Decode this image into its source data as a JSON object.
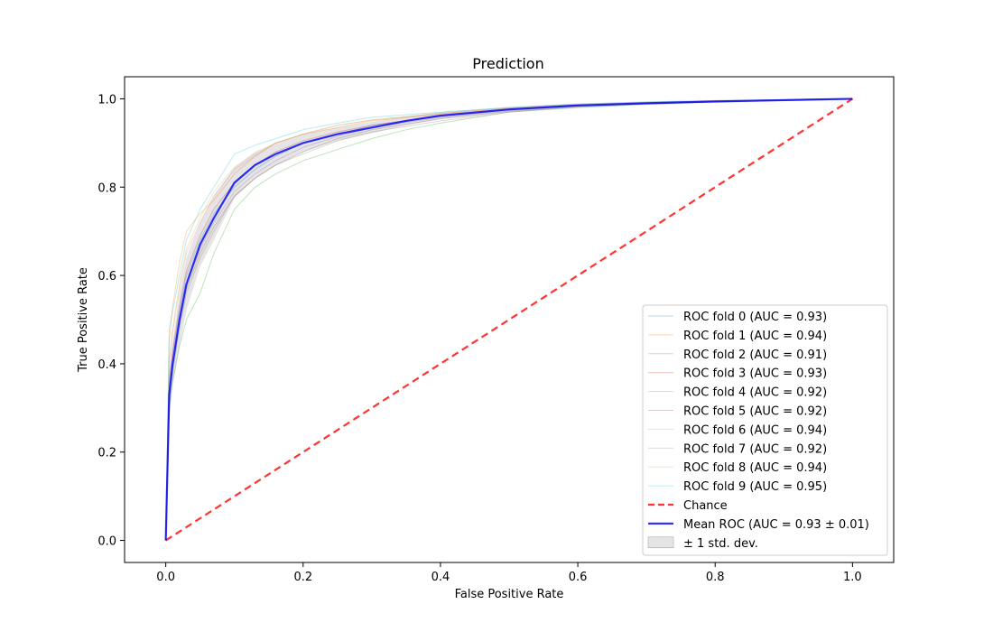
{
  "chart_data": {
    "type": "line",
    "title": "Prediction",
    "xlabel": "False Positive Rate",
    "ylabel": "True Positive Rate",
    "xlim": [
      -0.06,
      1.06
    ],
    "ylim": [
      -0.05,
      1.05
    ],
    "xticks": [
      0.0,
      0.2,
      0.4,
      0.6,
      0.8,
      1.0
    ],
    "yticks": [
      0.0,
      0.2,
      0.4,
      0.6,
      0.8,
      1.0
    ],
    "xtick_labels": [
      "0.0",
      "0.2",
      "0.4",
      "0.6",
      "0.8",
      "1.0"
    ],
    "ytick_labels": [
      "0.0",
      "0.2",
      "0.4",
      "0.6",
      "0.8",
      "1.0"
    ],
    "grid": false,
    "legend_position": "lower-right",
    "series": [
      {
        "name": "ROC fold 0 (AUC = 0.93)",
        "color": "#1f77b4",
        "x": [
          0,
          0.005,
          0.01,
          0.02,
          0.03,
          0.05,
          0.07,
          0.1,
          0.13,
          0.16,
          0.2,
          0.25,
          0.3,
          0.4,
          0.5,
          0.6,
          0.7,
          0.8,
          0.9,
          1.0
        ],
        "y": [
          0,
          0.35,
          0.42,
          0.52,
          0.6,
          0.68,
          0.74,
          0.8,
          0.84,
          0.87,
          0.9,
          0.92,
          0.94,
          0.96,
          0.975,
          0.984,
          0.99,
          0.994,
          0.997,
          1.0
        ]
      },
      {
        "name": "ROC fold 1 (AUC = 0.94)",
        "color": "#ff7f0e",
        "x": [
          0,
          0.005,
          0.01,
          0.02,
          0.03,
          0.05,
          0.07,
          0.1,
          0.13,
          0.16,
          0.2,
          0.25,
          0.3,
          0.4,
          0.5,
          0.6,
          0.7,
          0.8,
          0.9,
          1.0
        ],
        "y": [
          0,
          0.45,
          0.53,
          0.63,
          0.7,
          0.74,
          0.77,
          0.83,
          0.87,
          0.9,
          0.92,
          0.935,
          0.95,
          0.965,
          0.978,
          0.986,
          0.991,
          0.995,
          0.998,
          1.0
        ]
      },
      {
        "name": "ROC fold 2 (AUC = 0.91)",
        "color": "#2ca02c",
        "x": [
          0,
          0.005,
          0.01,
          0.02,
          0.03,
          0.05,
          0.07,
          0.1,
          0.13,
          0.16,
          0.2,
          0.25,
          0.3,
          0.35,
          0.4,
          0.5,
          0.6,
          0.7,
          0.8,
          0.9,
          1.0
        ],
        "y": [
          0,
          0.3,
          0.36,
          0.44,
          0.5,
          0.56,
          0.65,
          0.75,
          0.8,
          0.83,
          0.86,
          0.885,
          0.91,
          0.93,
          0.945,
          0.97,
          0.98,
          0.988,
          0.993,
          0.997,
          1.0
        ]
      },
      {
        "name": "ROC fold 3 (AUC = 0.93)",
        "color": "#d62728",
        "x": [
          0,
          0.005,
          0.01,
          0.02,
          0.03,
          0.05,
          0.07,
          0.1,
          0.13,
          0.16,
          0.2,
          0.25,
          0.3,
          0.4,
          0.5,
          0.6,
          0.7,
          0.8,
          0.9,
          1.0
        ],
        "y": [
          0,
          0.36,
          0.43,
          0.53,
          0.61,
          0.69,
          0.75,
          0.81,
          0.85,
          0.88,
          0.905,
          0.925,
          0.94,
          0.962,
          0.976,
          0.985,
          0.99,
          0.994,
          0.997,
          1.0
        ]
      },
      {
        "name": "ROC fold 4 (AUC = 0.92)",
        "color": "#9467bd",
        "x": [
          0,
          0.005,
          0.01,
          0.02,
          0.03,
          0.05,
          0.07,
          0.1,
          0.13,
          0.16,
          0.2,
          0.25,
          0.3,
          0.4,
          0.5,
          0.6,
          0.7,
          0.8,
          0.9,
          1.0
        ],
        "y": [
          0,
          0.33,
          0.4,
          0.5,
          0.58,
          0.66,
          0.72,
          0.79,
          0.83,
          0.86,
          0.89,
          0.915,
          0.935,
          0.958,
          0.974,
          0.984,
          0.99,
          0.994,
          0.997,
          1.0
        ]
      },
      {
        "name": "ROC fold 5 (AUC = 0.92)",
        "color": "#8c564b",
        "x": [
          0,
          0.005,
          0.01,
          0.02,
          0.03,
          0.05,
          0.07,
          0.1,
          0.13,
          0.16,
          0.2,
          0.25,
          0.3,
          0.4,
          0.5,
          0.6,
          0.7,
          0.8,
          0.9,
          1.0
        ],
        "y": [
          0,
          0.32,
          0.39,
          0.49,
          0.57,
          0.65,
          0.71,
          0.78,
          0.82,
          0.85,
          0.88,
          0.91,
          0.93,
          0.955,
          0.972,
          0.983,
          0.989,
          0.993,
          0.997,
          1.0
        ]
      },
      {
        "name": "ROC fold 6 (AUC = 0.94)",
        "color": "#e377c2",
        "x": [
          0,
          0.005,
          0.01,
          0.02,
          0.03,
          0.05,
          0.07,
          0.1,
          0.13,
          0.16,
          0.2,
          0.25,
          0.3,
          0.4,
          0.5,
          0.6,
          0.7,
          0.8,
          0.9,
          1.0
        ],
        "y": [
          0,
          0.4,
          0.47,
          0.57,
          0.65,
          0.72,
          0.78,
          0.84,
          0.87,
          0.9,
          0.92,
          0.94,
          0.952,
          0.967,
          0.979,
          0.987,
          0.992,
          0.995,
          0.998,
          1.0
        ]
      },
      {
        "name": "ROC fold 7 (AUC = 0.92)",
        "color": "#7f7f7f",
        "x": [
          0,
          0.005,
          0.01,
          0.02,
          0.03,
          0.05,
          0.07,
          0.1,
          0.13,
          0.16,
          0.2,
          0.25,
          0.3,
          0.4,
          0.5,
          0.6,
          0.7,
          0.8,
          0.9,
          1.0
        ],
        "y": [
          0,
          0.31,
          0.38,
          0.48,
          0.56,
          0.64,
          0.7,
          0.78,
          0.82,
          0.85,
          0.875,
          0.905,
          0.925,
          0.95,
          0.97,
          0.982,
          0.989,
          0.993,
          0.996,
          1.0
        ]
      },
      {
        "name": "ROC fold 8 (AUC = 0.94)",
        "color": "#bcbd22",
        "x": [
          0,
          0.005,
          0.01,
          0.02,
          0.03,
          0.05,
          0.07,
          0.1,
          0.13,
          0.16,
          0.2,
          0.25,
          0.3,
          0.4,
          0.5,
          0.6,
          0.7,
          0.8,
          0.9,
          1.0
        ],
        "y": [
          0,
          0.41,
          0.48,
          0.58,
          0.66,
          0.73,
          0.79,
          0.845,
          0.875,
          0.9,
          0.92,
          0.94,
          0.952,
          0.967,
          0.979,
          0.987,
          0.992,
          0.995,
          0.998,
          1.0
        ]
      },
      {
        "name": "ROC fold 9 (AUC = 0.95)",
        "color": "#17becf",
        "x": [
          0,
          0.005,
          0.01,
          0.02,
          0.03,
          0.05,
          0.07,
          0.1,
          0.13,
          0.16,
          0.2,
          0.25,
          0.3,
          0.4,
          0.5,
          0.6,
          0.7,
          0.8,
          0.9,
          1.0
        ],
        "y": [
          0,
          0.48,
          0.52,
          0.6,
          0.68,
          0.75,
          0.8,
          0.875,
          0.895,
          0.91,
          0.93,
          0.945,
          0.958,
          0.97,
          0.98,
          0.988,
          0.993,
          0.996,
          0.998,
          1.0
        ]
      },
      {
        "name": "Chance",
        "color": "#ff0000",
        "style": "dashed",
        "x": [
          0,
          1
        ],
        "y": [
          0,
          1
        ]
      },
      {
        "name": "Mean ROC (AUC = 0.93 ± 0.01)",
        "color": "#0000ff",
        "x": [
          0,
          0.005,
          0.01,
          0.02,
          0.03,
          0.05,
          0.07,
          0.1,
          0.13,
          0.16,
          0.2,
          0.25,
          0.3,
          0.35,
          0.4,
          0.5,
          0.6,
          0.7,
          0.8,
          0.9,
          1.0
        ],
        "y": [
          0,
          0.33,
          0.4,
          0.5,
          0.58,
          0.67,
          0.73,
          0.81,
          0.85,
          0.875,
          0.9,
          0.92,
          0.935,
          0.95,
          0.962,
          0.976,
          0.985,
          0.99,
          0.994,
          0.997,
          1.0
        ]
      }
    ],
    "std_band": {
      "name": "± 1 std. dev.",
      "color": "#bfbfbf",
      "x": [
        0,
        0.005,
        0.01,
        0.02,
        0.03,
        0.05,
        0.07,
        0.1,
        0.13,
        0.16,
        0.2,
        0.25,
        0.3,
        0.35,
        0.4,
        0.5,
        0.6,
        0.7,
        0.8,
        0.9,
        1.0
      ],
      "upper": [
        0,
        0.38,
        0.45,
        0.56,
        0.64,
        0.72,
        0.78,
        0.845,
        0.88,
        0.9,
        0.92,
        0.935,
        0.948,
        0.96,
        0.97,
        0.982,
        0.99,
        0.994,
        0.997,
        0.999,
        1.0
      ],
      "lower": [
        0,
        0.28,
        0.35,
        0.44,
        0.52,
        0.62,
        0.68,
        0.775,
        0.82,
        0.85,
        0.88,
        0.905,
        0.922,
        0.94,
        0.954,
        0.97,
        0.98,
        0.986,
        0.991,
        0.995,
        1.0
      ]
    }
  }
}
